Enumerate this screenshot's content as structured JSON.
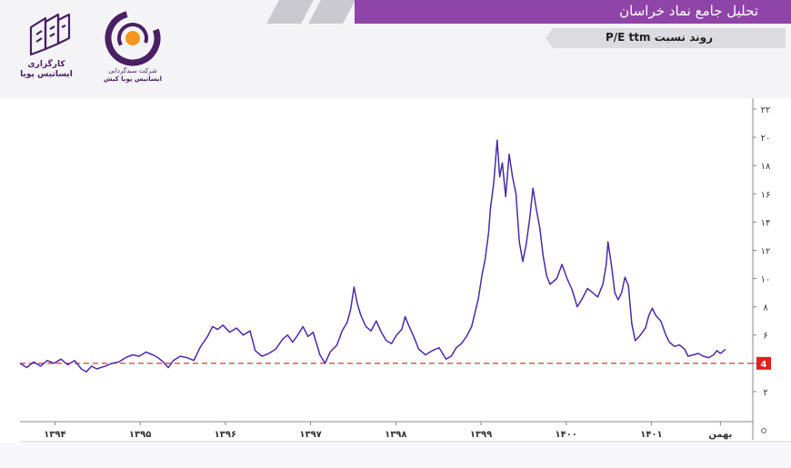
{
  "header": {
    "title": "تحلیل جامع نماد خراسان",
    "subtitle": "روند نسبت P/E ttm",
    "title_bar_color": "#8f44a8"
  },
  "logos": {
    "kargozari": {
      "text_line1": "کارگزاری",
      "text_line2": "ایساتیس پویا",
      "icon": "building-logo-icon"
    },
    "company": {
      "text_line1": "شرکت سبدگردانی",
      "text_line2": "ایساتیس پویا کیش",
      "icon": "ring-logo-icon"
    }
  },
  "chart_data": {
    "type": "line",
    "title": "",
    "xlabel": "",
    "ylabel": "",
    "ylim": [
      0,
      22
    ],
    "y_ticks": [
      2,
      4,
      6,
      8,
      10,
      12,
      14,
      16,
      18,
      20,
      22
    ],
    "y_tick_labels": [
      "۲",
      "۴",
      "۶",
      "۸",
      "۱۰",
      "۱۲",
      "۱۴",
      "۱۶",
      "۱۸",
      "۲۰",
      "۲۲"
    ],
    "x_ticks": [
      {
        "t": 0.41,
        "label": "۱۳۹۴"
      },
      {
        "t": 1.41,
        "label": "۱۳۹۵"
      },
      {
        "t": 2.41,
        "label": "۱۳۹۶"
      },
      {
        "t": 3.41,
        "label": "۱۳۹۷"
      },
      {
        "t": 4.41,
        "label": "۱۳۹۸"
      },
      {
        "t": 5.41,
        "label": "۱۳۹۹"
      },
      {
        "t": 6.41,
        "label": "۱۴۰۰"
      },
      {
        "t": 7.41,
        "label": "۱۴۰۱"
      },
      {
        "t": 8.22,
        "label": "بهمن"
      }
    ],
    "x_range": [
      0,
      8.6
    ],
    "reference_line": {
      "value": 4,
      "label": "4",
      "color": "#e02020"
    },
    "series": [
      {
        "color": "#4b2aa8",
        "points": [
          [
            0.0,
            4.0
          ],
          [
            0.08,
            3.7
          ],
          [
            0.16,
            4.1
          ],
          [
            0.24,
            3.8
          ],
          [
            0.32,
            4.2
          ],
          [
            0.4,
            4.0
          ],
          [
            0.48,
            4.3
          ],
          [
            0.56,
            3.9
          ],
          [
            0.64,
            4.2
          ],
          [
            0.72,
            3.6
          ],
          [
            0.78,
            3.4
          ],
          [
            0.84,
            3.8
          ],
          [
            0.9,
            3.6
          ],
          [
            1.0,
            3.8
          ],
          [
            1.08,
            4.0
          ],
          [
            1.16,
            4.1
          ],
          [
            1.24,
            4.4
          ],
          [
            1.32,
            4.6
          ],
          [
            1.4,
            4.5
          ],
          [
            1.48,
            4.8
          ],
          [
            1.56,
            4.6
          ],
          [
            1.62,
            4.4
          ],
          [
            1.68,
            4.1
          ],
          [
            1.74,
            3.7
          ],
          [
            1.8,
            4.2
          ],
          [
            1.88,
            4.5
          ],
          [
            1.96,
            4.4
          ],
          [
            2.04,
            4.2
          ],
          [
            2.12,
            5.2
          ],
          [
            2.2,
            5.9
          ],
          [
            2.26,
            6.6
          ],
          [
            2.32,
            6.4
          ],
          [
            2.38,
            6.7
          ],
          [
            2.46,
            6.2
          ],
          [
            2.54,
            6.5
          ],
          [
            2.62,
            6.0
          ],
          [
            2.7,
            6.3
          ],
          [
            2.76,
            4.9
          ],
          [
            2.84,
            4.5
          ],
          [
            2.92,
            4.7
          ],
          [
            3.0,
            5.0
          ],
          [
            3.08,
            5.7
          ],
          [
            3.14,
            6.0
          ],
          [
            3.2,
            5.5
          ],
          [
            3.26,
            6.0
          ],
          [
            3.32,
            6.6
          ],
          [
            3.38,
            5.9
          ],
          [
            3.44,
            6.2
          ],
          [
            3.52,
            4.6
          ],
          [
            3.58,
            4.0
          ],
          [
            3.64,
            4.8
          ],
          [
            3.72,
            5.3
          ],
          [
            3.78,
            6.3
          ],
          [
            3.84,
            6.9
          ],
          [
            3.88,
            7.8
          ],
          [
            3.92,
            9.4
          ],
          [
            3.96,
            8.2
          ],
          [
            4.0,
            7.4
          ],
          [
            4.06,
            6.6
          ],
          [
            4.12,
            6.3
          ],
          [
            4.18,
            7.0
          ],
          [
            4.24,
            6.2
          ],
          [
            4.3,
            5.6
          ],
          [
            4.36,
            5.4
          ],
          [
            4.42,
            6.0
          ],
          [
            4.48,
            6.4
          ],
          [
            4.52,
            7.3
          ],
          [
            4.56,
            6.7
          ],
          [
            4.62,
            5.9
          ],
          [
            4.68,
            5.0
          ],
          [
            4.76,
            4.6
          ],
          [
            4.84,
            4.9
          ],
          [
            4.92,
            5.1
          ],
          [
            5.0,
            4.3
          ],
          [
            5.06,
            4.5
          ],
          [
            5.12,
            5.1
          ],
          [
            5.18,
            5.4
          ],
          [
            5.24,
            5.9
          ],
          [
            5.3,
            6.6
          ],
          [
            5.34,
            7.6
          ],
          [
            5.38,
            8.6
          ],
          [
            5.42,
            10.2
          ],
          [
            5.46,
            11.4
          ],
          [
            5.5,
            13.3
          ],
          [
            5.52,
            14.9
          ],
          [
            5.56,
            16.8
          ],
          [
            5.6,
            19.8
          ],
          [
            5.63,
            17.2
          ],
          [
            5.66,
            18.2
          ],
          [
            5.7,
            15.8
          ],
          [
            5.74,
            18.8
          ],
          [
            5.78,
            17.2
          ],
          [
            5.82,
            16.0
          ],
          [
            5.86,
            12.6
          ],
          [
            5.9,
            11.2
          ],
          [
            5.94,
            12.4
          ],
          [
            5.98,
            14.2
          ],
          [
            6.02,
            16.4
          ],
          [
            6.06,
            14.9
          ],
          [
            6.1,
            13.6
          ],
          [
            6.14,
            11.6
          ],
          [
            6.18,
            10.2
          ],
          [
            6.22,
            9.6
          ],
          [
            6.3,
            10.0
          ],
          [
            6.36,
            11.0
          ],
          [
            6.42,
            10.0
          ],
          [
            6.48,
            9.2
          ],
          [
            6.54,
            8.0
          ],
          [
            6.6,
            8.6
          ],
          [
            6.66,
            9.3
          ],
          [
            6.72,
            9.0
          ],
          [
            6.78,
            8.7
          ],
          [
            6.84,
            9.6
          ],
          [
            6.88,
            11.0
          ],
          [
            6.9,
            12.6
          ],
          [
            6.94,
            11.0
          ],
          [
            6.98,
            9.0
          ],
          [
            7.02,
            8.5
          ],
          [
            7.06,
            9.0
          ],
          [
            7.1,
            10.1
          ],
          [
            7.14,
            9.5
          ],
          [
            7.18,
            6.8
          ],
          [
            7.22,
            5.6
          ],
          [
            7.28,
            6.0
          ],
          [
            7.34,
            6.5
          ],
          [
            7.38,
            7.4
          ],
          [
            7.42,
            7.9
          ],
          [
            7.46,
            7.4
          ],
          [
            7.52,
            7.0
          ],
          [
            7.58,
            6.0
          ],
          [
            7.62,
            5.5
          ],
          [
            7.68,
            5.2
          ],
          [
            7.74,
            5.3
          ],
          [
            7.8,
            5.0
          ],
          [
            7.84,
            4.5
          ],
          [
            7.9,
            4.6
          ],
          [
            7.96,
            4.7
          ],
          [
            8.02,
            4.5
          ],
          [
            8.08,
            4.4
          ],
          [
            8.14,
            4.6
          ],
          [
            8.18,
            4.9
          ],
          [
            8.22,
            4.7
          ],
          [
            8.28,
            5.0
          ]
        ]
      }
    ],
    "grid": false,
    "legend": "none"
  },
  "footer": {
    "corner_icon": "sun-icon"
  }
}
